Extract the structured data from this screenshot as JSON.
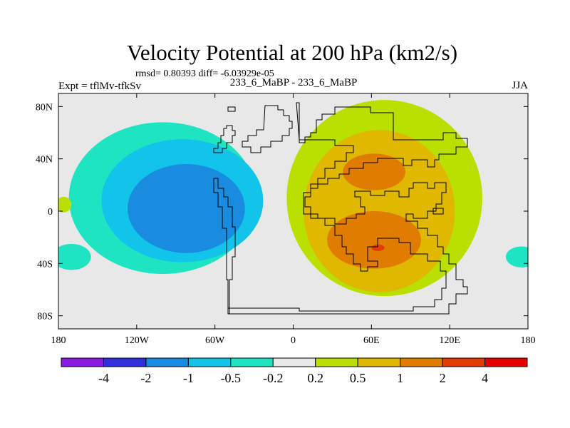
{
  "chart_data": {
    "type": "heatmap",
    "title": "Velocity Potential at 200 hPa (km2/s)",
    "stats_line": "rmsd= 0.80393  diff= -6.03929e-05",
    "left_label": "Expt = tflMv-tfkSv",
    "center_label": "233_6_MaBP - 233_6_MaBP",
    "right_label": "JJA",
    "x_range": [
      -180,
      180
    ],
    "y_range": [
      -90,
      90
    ],
    "x_ticks": [
      {
        "value": -180,
        "label": "180"
      },
      {
        "value": -120,
        "label": "120W"
      },
      {
        "value": -60,
        "label": "60W"
      },
      {
        "value": 0,
        "label": "0"
      },
      {
        "value": 60,
        "label": "60E"
      },
      {
        "value": 120,
        "label": "120E"
      },
      {
        "value": 180,
        "label": "180"
      }
    ],
    "y_ticks": [
      {
        "value": 80,
        "label": "80N"
      },
      {
        "value": 40,
        "label": "40N"
      },
      {
        "value": 0,
        "label": "0"
      },
      {
        "value": -40,
        "label": "40S"
      },
      {
        "value": -80,
        "label": "80S"
      }
    ],
    "colorbar": {
      "boundaries": [
        "-4",
        "-2",
        "-1",
        "-0.5",
        "-0.2",
        "0.2",
        "0.5",
        "1",
        "2",
        "4"
      ],
      "colors": [
        "#8a1be0",
        "#2f2fdc",
        "#1a8ce0",
        "#12c3ea",
        "#1fe4c1",
        "#e8e8e8",
        "#b9e000",
        "#e0b800",
        "#e07d00",
        "#e23c00",
        "#e80000"
      ]
    },
    "contour_regions": [
      {
        "level": "-0.5 to -0.2",
        "color": "#1fe4c1",
        "center": [
          -100,
          10
        ],
        "extent_deg": [
          72,
          58
        ]
      },
      {
        "level": "-0.5 to -0.2",
        "color": "#1fe4c1",
        "center": [
          -170,
          -35
        ],
        "extent_deg": [
          15,
          10
        ]
      },
      {
        "level": "-0.5 to -0.2",
        "color": "#1fe4c1",
        "center": [
          175,
          -35
        ],
        "extent_deg": [
          12,
          8
        ]
      },
      {
        "level": "-1 to -0.5",
        "color": "#12c3ea",
        "center": [
          -85,
          8
        ],
        "extent_deg": [
          62,
          47
        ]
      },
      {
        "level": "-2 to -1",
        "color": "#1a8ce0",
        "center": [
          -82,
          2
        ],
        "extent_deg": [
          45,
          34
        ]
      },
      {
        "level": "0.2 to 0.5",
        "color": "#b9e000",
        "center": [
          70,
          10
        ],
        "extent_deg": [
          75,
          75
        ]
      },
      {
        "level": "0.2 to 0.5",
        "color": "#b9e000",
        "center": [
          -176,
          5
        ],
        "extent_deg": [
          6,
          6
        ]
      },
      {
        "level": "0.5 to 1",
        "color": "#e0b800",
        "center": [
          66,
          0
        ],
        "extent_deg": [
          58,
          62
        ]
      },
      {
        "level": "1 to 2",
        "color": "#e07d00",
        "center": [
          62,
          30
        ],
        "extent_deg": [
          24,
          14
        ]
      },
      {
        "level": "1 to 2",
        "color": "#e07d00",
        "center": [
          62,
          -22
        ],
        "extent_deg": [
          36,
          22
        ]
      },
      {
        "level": "2 to 4",
        "color": "#e23c00",
        "center": [
          65,
          -28
        ],
        "extent_deg": [
          5,
          2.5
        ]
      }
    ]
  }
}
